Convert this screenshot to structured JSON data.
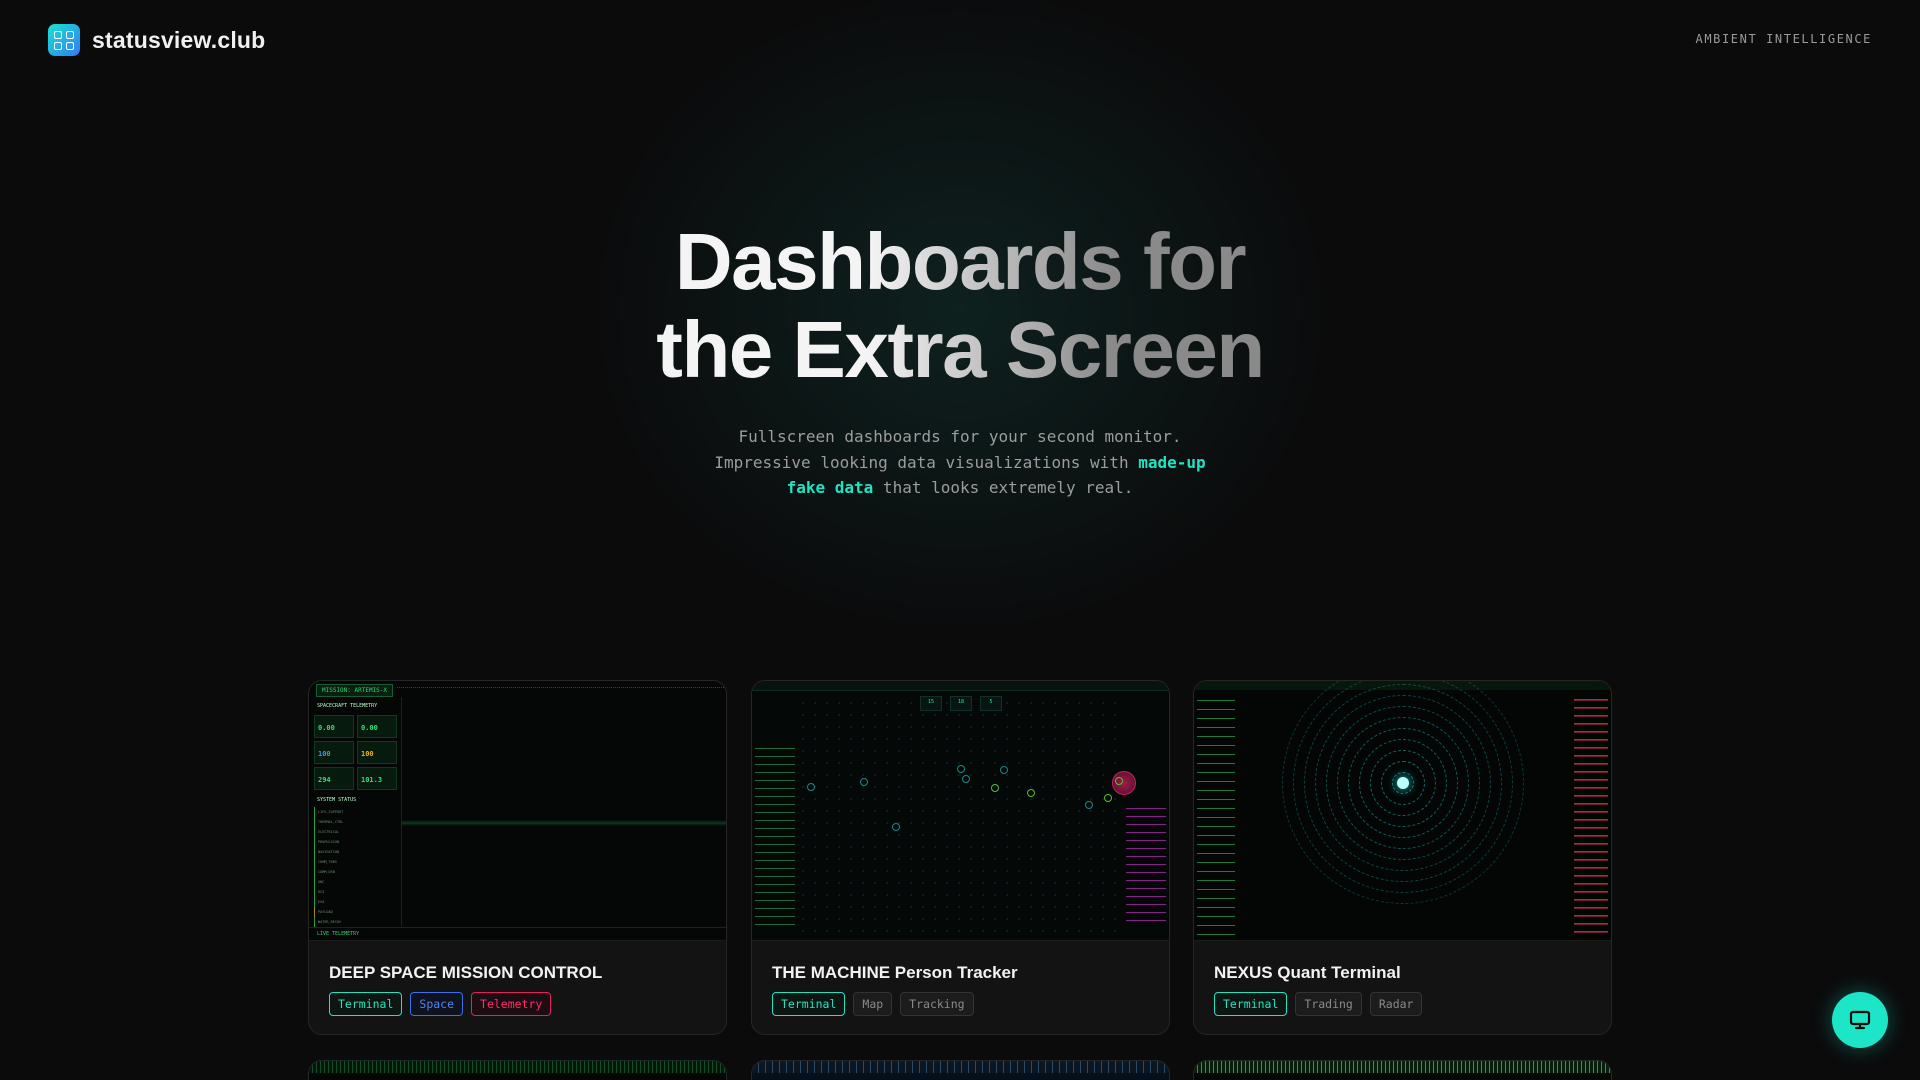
{
  "header": {
    "brand": "statusview.club",
    "tagline": "AMBIENT INTELLIGENCE",
    "logo_icon": "grid-icon"
  },
  "hero": {
    "title_line1": "Dashboards for",
    "title_line2": "the Extra Screen",
    "subtitle_line1": "Fullscreen dashboards for your second monitor.",
    "subtitle_line2_prefix": "Impressive looking data visualizations with ",
    "subtitle_highlight_a": "made-up",
    "subtitle_highlight_b": "fake data",
    "subtitle_line3_suffix": " that looks extremely real."
  },
  "colors": {
    "accent": "#1de6c8",
    "tag_blue": "#4c86f5",
    "tag_red": "#ff2f68"
  },
  "cards": [
    {
      "title": "DEEP SPACE MISSION CONTROL",
      "tags": [
        "Terminal",
        "Space",
        "Telemetry"
      ],
      "thumb": {
        "mission": "MISSION: ARTEMIS-X",
        "section1": "SPACECRAFT TELEMETRY",
        "values": [
          "0.00",
          "0.00",
          "100",
          "100",
          "294",
          "101.3"
        ],
        "section2": "SYSTEM STATUS",
        "systems": [
          "LIFE_SUPPORT",
          "THERMAL_CTRL",
          "ELECTRICAL",
          "PROPULSION",
          "NAVIGATION",
          "COMM_TDRS",
          "COMM_DSN",
          "GNC",
          "RCS",
          "EVA",
          "PAYLOAD",
          "WATER_RECOV"
        ],
        "footer": "LIVE TELEMETRY"
      }
    },
    {
      "title": "THE MACHINE Person Tracker",
      "tags": [
        "Terminal",
        "Map",
        "Tracking"
      ],
      "thumb": {
        "stats": [
          "15",
          "18",
          "5"
        ]
      }
    },
    {
      "title": "NEXUS Quant Terminal",
      "tags": [
        "Terminal",
        "Trading",
        "Radar"
      ]
    }
  ],
  "fab": {
    "icon": "monitor-icon"
  }
}
